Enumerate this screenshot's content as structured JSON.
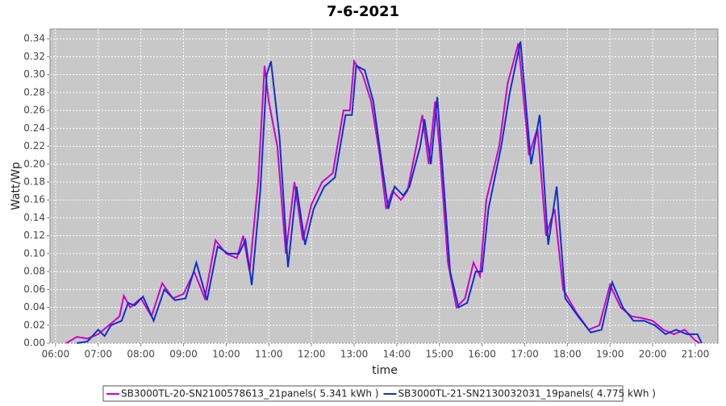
{
  "chart_data": {
    "type": "line",
    "title": "7-6-2021",
    "x_label": "time",
    "y_label": "Watt/Wp",
    "xlim": [
      5.87,
      21.53
    ],
    "ylim": [
      0,
      0.351
    ],
    "xticks": [
      {
        "value": 6,
        "label": "06:00"
      },
      {
        "value": 7,
        "label": "07:00"
      },
      {
        "value": 8,
        "label": "08:00"
      },
      {
        "value": 9,
        "label": "09:00"
      },
      {
        "value": 10,
        "label": "10:00"
      },
      {
        "value": 11,
        "label": "11:00"
      },
      {
        "value": 12,
        "label": "12:00"
      },
      {
        "value": 13,
        "label": "13:00"
      },
      {
        "value": 14,
        "label": "14:00"
      },
      {
        "value": 15,
        "label": "15:00"
      },
      {
        "value": 16,
        "label": "16:00"
      },
      {
        "value": 17,
        "label": "17:00"
      },
      {
        "value": 18,
        "label": "18:00"
      },
      {
        "value": 19,
        "label": "19:00"
      },
      {
        "value": 20,
        "label": "20:00"
      },
      {
        "value": 21,
        "label": "21:00"
      }
    ],
    "yticks": [
      {
        "value": 0,
        "label": "0.00"
      },
      {
        "value": 0.02,
        "label": "0.02"
      },
      {
        "value": 0.04,
        "label": "0.04"
      },
      {
        "value": 0.06,
        "label": "0.06"
      },
      {
        "value": 0.08,
        "label": "0.08"
      },
      {
        "value": 0.1,
        "label": "0.10"
      },
      {
        "value": 0.12,
        "label": "0.12"
      },
      {
        "value": 0.14,
        "label": "0.14"
      },
      {
        "value": 0.16,
        "label": "0.16"
      },
      {
        "value": 0.18,
        "label": "0.18"
      },
      {
        "value": 0.2,
        "label": "0.20"
      },
      {
        "value": 0.22,
        "label": "0.22"
      },
      {
        "value": 0.24,
        "label": "0.24"
      },
      {
        "value": 0.26,
        "label": "0.26"
      },
      {
        "value": 0.28,
        "label": "0.28"
      },
      {
        "value": 0.3,
        "label": "0.30"
      },
      {
        "value": 0.32,
        "label": "0.32"
      },
      {
        "value": 0.34,
        "label": "0.34"
      }
    ],
    "grid": true,
    "series": [
      {
        "name": "SB3000TL-20-SN2100578613_21panels( 5.341 kWh )",
        "color": "#cc00cc",
        "x": [
          6.25,
          6.5,
          6.75,
          7.0,
          7.25,
          7.5,
          7.6,
          7.75,
          8.0,
          8.25,
          8.5,
          8.75,
          9.0,
          9.25,
          9.5,
          9.75,
          10.0,
          10.25,
          10.4,
          10.55,
          10.75,
          10.9,
          11.0,
          11.2,
          11.4,
          11.6,
          11.8,
          12.0,
          12.25,
          12.5,
          12.75,
          12.9,
          13.0,
          13.2,
          13.4,
          13.6,
          13.75,
          13.9,
          14.1,
          14.25,
          14.5,
          14.6,
          14.75,
          14.9,
          15.0,
          15.2,
          15.4,
          15.6,
          15.8,
          15.95,
          16.1,
          16.4,
          16.6,
          16.85,
          17.1,
          17.3,
          17.5,
          17.7,
          17.9,
          18.2,
          18.5,
          18.75,
          19.0,
          19.25,
          19.5,
          19.75,
          20.0,
          20.25,
          20.5,
          20.75,
          21.0,
          21.1
        ],
        "values": [
          0.0,
          0.007,
          0.005,
          0.01,
          0.02,
          0.03,
          0.053,
          0.04,
          0.05,
          0.03,
          0.067,
          0.05,
          0.055,
          0.08,
          0.05,
          0.115,
          0.1,
          0.095,
          0.12,
          0.08,
          0.18,
          0.31,
          0.27,
          0.22,
          0.1,
          0.18,
          0.115,
          0.155,
          0.18,
          0.19,
          0.26,
          0.26,
          0.315,
          0.3,
          0.27,
          0.21,
          0.15,
          0.17,
          0.16,
          0.17,
          0.23,
          0.255,
          0.2,
          0.27,
          0.22,
          0.09,
          0.04,
          0.05,
          0.09,
          0.075,
          0.16,
          0.22,
          0.29,
          0.335,
          0.21,
          0.24,
          0.12,
          0.15,
          0.06,
          0.035,
          0.015,
          0.02,
          0.065,
          0.04,
          0.03,
          0.028,
          0.025,
          0.015,
          0.01,
          0.015,
          0.003,
          0.0
        ]
      },
      {
        "name": "SB3000TL-21-SN2130032031_19panels( 4.775 kWh )",
        "color": "#1030c8",
        "x": [
          6.5,
          6.75,
          7.0,
          7.15,
          7.3,
          7.55,
          7.7,
          7.85,
          8.05,
          8.3,
          8.55,
          8.8,
          9.05,
          9.3,
          9.55,
          9.8,
          10.05,
          10.3,
          10.45,
          10.6,
          10.8,
          10.95,
          11.05,
          11.25,
          11.45,
          11.65,
          11.85,
          12.05,
          12.3,
          12.55,
          12.8,
          12.95,
          13.05,
          13.25,
          13.45,
          13.65,
          13.8,
          13.95,
          14.15,
          14.3,
          14.55,
          14.65,
          14.8,
          14.95,
          15.05,
          15.25,
          15.45,
          15.65,
          15.85,
          16.0,
          16.15,
          16.45,
          16.65,
          16.9,
          17.15,
          17.35,
          17.55,
          17.75,
          17.95,
          18.25,
          18.55,
          18.8,
          19.05,
          19.3,
          19.55,
          19.8,
          20.05,
          20.3,
          20.55,
          20.8,
          21.05,
          21.15
        ],
        "values": [
          0.0,
          0.002,
          0.015,
          0.008,
          0.02,
          0.025,
          0.045,
          0.042,
          0.052,
          0.025,
          0.06,
          0.048,
          0.05,
          0.09,
          0.048,
          0.108,
          0.1,
          0.1,
          0.115,
          0.065,
          0.17,
          0.3,
          0.315,
          0.23,
          0.085,
          0.175,
          0.11,
          0.15,
          0.175,
          0.185,
          0.255,
          0.255,
          0.31,
          0.305,
          0.27,
          0.2,
          0.15,
          0.175,
          0.165,
          0.175,
          0.22,
          0.25,
          0.2,
          0.275,
          0.21,
          0.08,
          0.04,
          0.045,
          0.08,
          0.08,
          0.15,
          0.22,
          0.28,
          0.337,
          0.2,
          0.255,
          0.11,
          0.175,
          0.05,
          0.03,
          0.012,
          0.015,
          0.068,
          0.04,
          0.025,
          0.025,
          0.02,
          0.01,
          0.015,
          0.01,
          0.01,
          0.0
        ]
      }
    ]
  }
}
